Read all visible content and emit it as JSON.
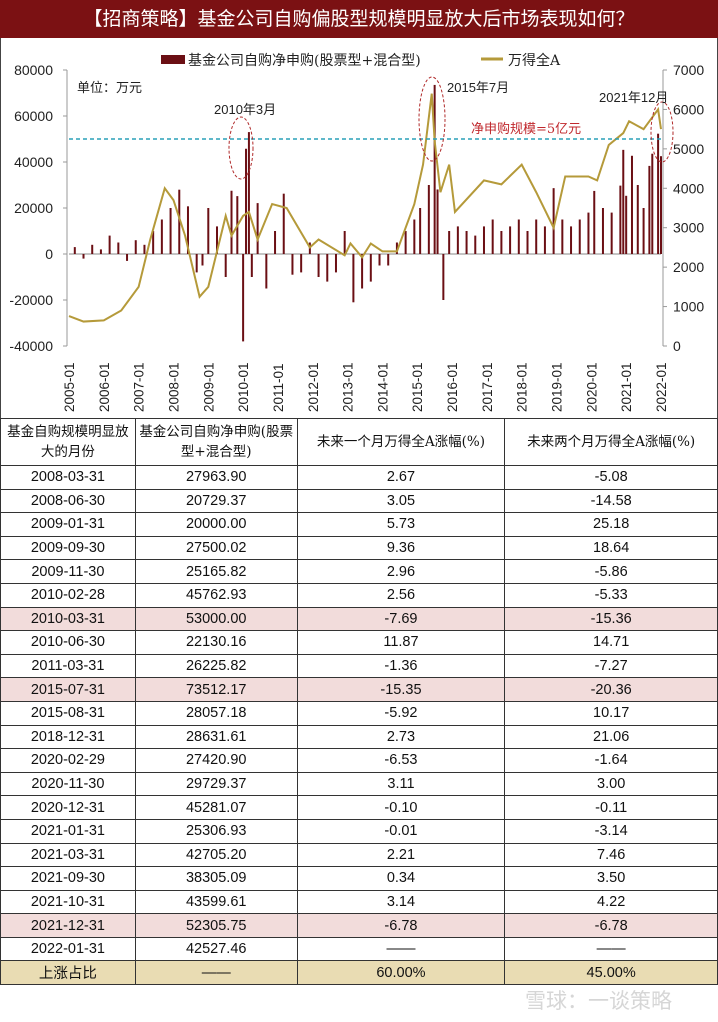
{
  "title": "【招商策略】基金公司自购偏股型规模明显放大后市场表现如何？",
  "watermark": "雪球：一谈策略",
  "chart_data": {
    "type": "bar+line",
    "legend": [
      {
        "name": "基金公司自购净申购(股票型+混合型)",
        "color": "#6b0f14",
        "kind": "bar"
      },
      {
        "name": "万得全A",
        "color": "#b59a3a",
        "kind": "line"
      }
    ],
    "legend_position": "top",
    "unit_label": "单位：万元",
    "y_left": {
      "ticks": [
        80000,
        60000,
        40000,
        20000,
        0,
        -20000,
        -40000
      ],
      "range": [
        -40000,
        80000
      ]
    },
    "y_right": {
      "ticks": [
        7000,
        6000,
        5000,
        4000,
        3000,
        2000,
        1000,
        0
      ],
      "range": [
        0,
        7000
      ]
    },
    "x_ticks": [
      "2005-01",
      "2006-01",
      "2007-01",
      "2008-01",
      "2009-01",
      "2010-01",
      "2011-01",
      "2012-01",
      "2013-01",
      "2014-01",
      "2015-01",
      "2016-01",
      "2017-01",
      "2018-01",
      "2019-01",
      "2020-01",
      "2021-01",
      "2022-01"
    ],
    "threshold": {
      "value": 50000,
      "label": "净申购规模=5亿元",
      "color": "#2aa0b8"
    },
    "annotations": [
      "2010年3月",
      "2015年7月",
      "2021年12月"
    ],
    "bars": [
      [
        "2005-03",
        3000
      ],
      [
        "2005-06",
        -2000
      ],
      [
        "2005-09",
        4000
      ],
      [
        "2005-12",
        2000
      ],
      [
        "2006-03",
        8000
      ],
      [
        "2006-06",
        5000
      ],
      [
        "2006-09",
        -3000
      ],
      [
        "2006-12",
        6000
      ],
      [
        "2007-03",
        4000
      ],
      [
        "2007-06",
        10000
      ],
      [
        "2007-09",
        15000
      ],
      [
        "2007-12",
        20000
      ],
      [
        "2008-03",
        27964
      ],
      [
        "2008-06",
        20729
      ],
      [
        "2008-09",
        -8000
      ],
      [
        "2008-11",
        -5000
      ],
      [
        "2009-01",
        20000
      ],
      [
        "2009-04",
        12000
      ],
      [
        "2009-07",
        -10000
      ],
      [
        "2009-09",
        27500
      ],
      [
        "2009-11",
        25166
      ],
      [
        "2010-01",
        -38000
      ],
      [
        "2010-02",
        45763
      ],
      [
        "2010-03",
        53000
      ],
      [
        "2010-04",
        -10000
      ],
      [
        "2010-06",
        22130
      ],
      [
        "2010-09",
        -15000
      ],
      [
        "2010-12",
        10000
      ],
      [
        "2011-03",
        26226
      ],
      [
        "2011-06",
        -9000
      ],
      [
        "2011-09",
        -8000
      ],
      [
        "2011-12",
        5000
      ],
      [
        "2012-03",
        -10000
      ],
      [
        "2012-06",
        -12000
      ],
      [
        "2012-09",
        -8000
      ],
      [
        "2012-12",
        10000
      ],
      [
        "2013-03",
        -21000
      ],
      [
        "2013-06",
        -15000
      ],
      [
        "2013-09",
        -12000
      ],
      [
        "2013-12",
        -5000
      ],
      [
        "2014-03",
        -5000
      ],
      [
        "2014-06",
        5000
      ],
      [
        "2014-09",
        10000
      ],
      [
        "2014-12",
        15000
      ],
      [
        "2015-02",
        20000
      ],
      [
        "2015-05",
        30000
      ],
      [
        "2015-07",
        73512
      ],
      [
        "2015-08",
        28057
      ],
      [
        "2015-10",
        -20000
      ],
      [
        "2015-12",
        10000
      ],
      [
        "2016-03",
        12000
      ],
      [
        "2016-06",
        10000
      ],
      [
        "2016-09",
        8000
      ],
      [
        "2016-12",
        12000
      ],
      [
        "2017-03",
        15000
      ],
      [
        "2017-06",
        10000
      ],
      [
        "2017-09",
        12000
      ],
      [
        "2017-12",
        15000
      ],
      [
        "2018-03",
        10000
      ],
      [
        "2018-06",
        15000
      ],
      [
        "2018-09",
        12000
      ],
      [
        "2018-12",
        28632
      ],
      [
        "2019-03",
        15000
      ],
      [
        "2019-06",
        12000
      ],
      [
        "2019-09",
        15000
      ],
      [
        "2019-12",
        18000
      ],
      [
        "2020-02",
        27421
      ],
      [
        "2020-05",
        20000
      ],
      [
        "2020-08",
        18000
      ],
      [
        "2020-11",
        29729
      ],
      [
        "2020-12",
        45281
      ],
      [
        "2021-01",
        25307
      ],
      [
        "2021-03",
        42705
      ],
      [
        "2021-05",
        30000
      ],
      [
        "2021-07",
        20000
      ],
      [
        "2021-09",
        38305
      ],
      [
        "2021-10",
        43600
      ],
      [
        "2021-12",
        52306
      ],
      [
        "2022-01",
        42527
      ]
    ],
    "line": [
      [
        "2005-01",
        760
      ],
      [
        "2005-06",
        620
      ],
      [
        "2006-01",
        650
      ],
      [
        "2006-07",
        900
      ],
      [
        "2007-01",
        1500
      ],
      [
        "2007-05",
        2700
      ],
      [
        "2007-10",
        4000
      ],
      [
        "2008-01",
        3700
      ],
      [
        "2008-05",
        2800
      ],
      [
        "2008-10",
        1250
      ],
      [
        "2009-01",
        1500
      ],
      [
        "2009-07",
        3300
      ],
      [
        "2009-09",
        2800
      ],
      [
        "2010-01",
        3300
      ],
      [
        "2010-03",
        3400
      ],
      [
        "2010-06",
        2700
      ],
      [
        "2010-11",
        3600
      ],
      [
        "2011-04",
        3500
      ],
      [
        "2011-12",
        2500
      ],
      [
        "2012-03",
        2700
      ],
      [
        "2012-12",
        2300
      ],
      [
        "2013-02",
        2600
      ],
      [
        "2013-06",
        2250
      ],
      [
        "2013-09",
        2600
      ],
      [
        "2014-01",
        2400
      ],
      [
        "2014-06",
        2400
      ],
      [
        "2014-12",
        3600
      ],
      [
        "2015-03",
        4600
      ],
      [
        "2015-06",
        6400
      ],
      [
        "2015-07",
        5200
      ],
      [
        "2015-09",
        3900
      ],
      [
        "2015-12",
        4600
      ],
      [
        "2016-02",
        3400
      ],
      [
        "2016-12",
        4200
      ],
      [
        "2017-06",
        4100
      ],
      [
        "2018-01",
        4600
      ],
      [
        "2018-06",
        3900
      ],
      [
        "2018-12",
        3000
      ],
      [
        "2019-04",
        4300
      ],
      [
        "2019-12",
        4300
      ],
      [
        "2020-03",
        4200
      ],
      [
        "2020-07",
        5100
      ],
      [
        "2020-12",
        5400
      ],
      [
        "2021-02",
        5700
      ],
      [
        "2021-07",
        5500
      ],
      [
        "2021-12",
        6000
      ],
      [
        "2022-01",
        5500
      ]
    ]
  },
  "table": {
    "headers": [
      "基金自购规模明显放大的月份",
      "基金公司自购净申购(股票型+混合型)",
      "未来一个月万得全A涨幅(%)",
      "未来两个月万得全A涨幅(%)"
    ],
    "rows": [
      [
        "2008-03-31",
        "27963.90",
        "2.67",
        "-5.08"
      ],
      [
        "2008-06-30",
        "20729.37",
        "3.05",
        "-14.58"
      ],
      [
        "2009-01-31",
        "20000.00",
        "5.73",
        "25.18"
      ],
      [
        "2009-09-30",
        "27500.02",
        "9.36",
        "18.64"
      ],
      [
        "2009-11-30",
        "25165.82",
        "2.96",
        "-5.86"
      ],
      [
        "2010-02-28",
        "45762.93",
        "2.56",
        "-5.33"
      ],
      [
        "2010-03-31",
        "53000.00",
        "-7.69",
        "-15.36"
      ],
      [
        "2010-06-30",
        "22130.16",
        "11.87",
        "14.71"
      ],
      [
        "2011-03-31",
        "26225.82",
        "-1.36",
        "-7.27"
      ],
      [
        "2015-07-31",
        "73512.17",
        "-15.35",
        "-20.36"
      ],
      [
        "2015-08-31",
        "28057.18",
        "-5.92",
        "10.17"
      ],
      [
        "2018-12-31",
        "28631.61",
        "2.73",
        "21.06"
      ],
      [
        "2020-02-29",
        "27420.90",
        "-6.53",
        "-1.64"
      ],
      [
        "2020-11-30",
        "29729.37",
        "3.11",
        "3.00"
      ],
      [
        "2020-12-31",
        "45281.07",
        "-0.10",
        "-0.11"
      ],
      [
        "2021-01-31",
        "25306.93",
        "-0.01",
        "-3.14"
      ],
      [
        "2021-03-31",
        "42705.20",
        "2.21",
        "7.46"
      ],
      [
        "2021-09-30",
        "38305.09",
        "0.34",
        "3.50"
      ],
      [
        "2021-10-31",
        "43599.61",
        "3.14",
        "4.22"
      ],
      [
        "2021-12-31",
        "52305.75",
        "-6.78",
        "-6.78"
      ],
      [
        "2022-01-31",
        "42527.46",
        "——",
        "——"
      ]
    ],
    "highlight_rows": [
      "2010-03-31",
      "2015-07-31",
      "2021-12-31"
    ],
    "highlight_color": "#f2dcdb",
    "summary": [
      "上涨占比",
      "——",
      "60.00%",
      "45.00%"
    ]
  }
}
